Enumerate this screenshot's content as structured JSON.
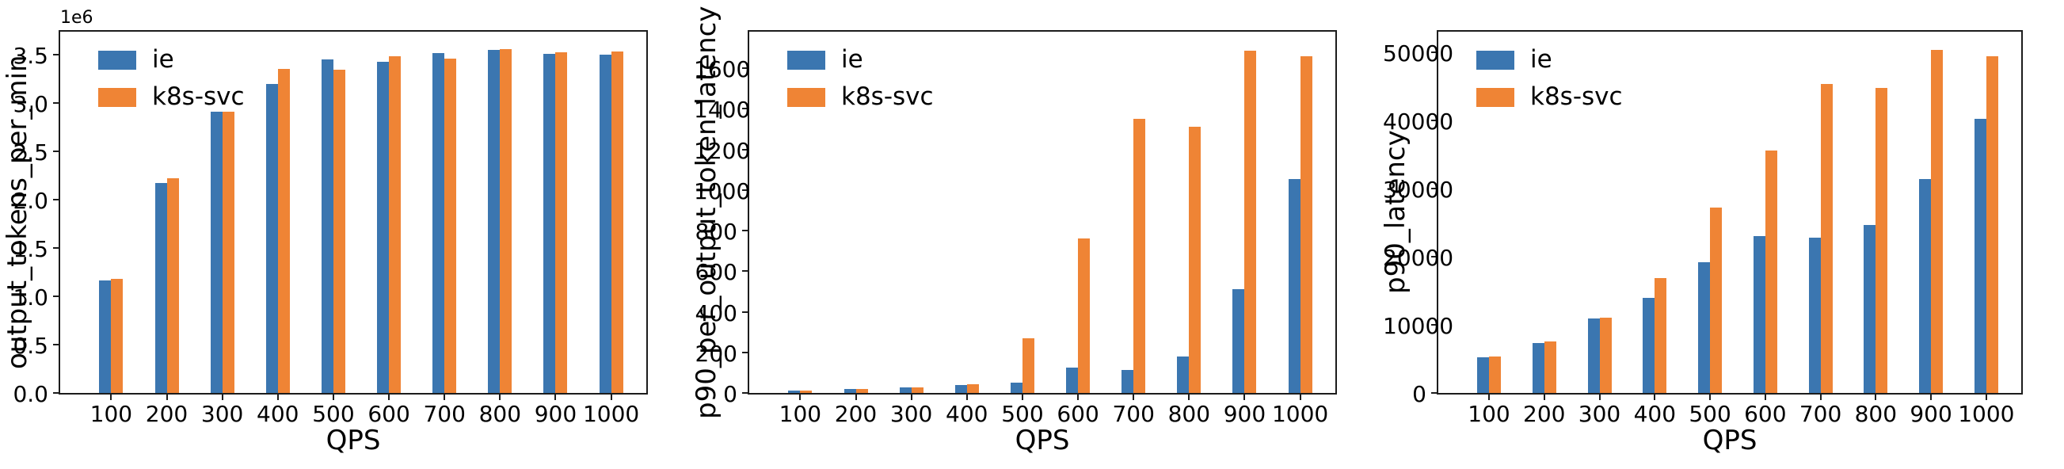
{
  "figure": {
    "background": "#ffffff",
    "axis_color": "#1c1c1c",
    "series_colors": {
      "ie": "#3b76b0",
      "k8s_svc": "#ef8435"
    }
  },
  "legend": {
    "position": "upper left",
    "items": [
      {
        "label": "ie",
        "color": "#3b76b0"
      },
      {
        "label": "k8s-svc",
        "color": "#ef8435"
      }
    ]
  },
  "chart_data": [
    {
      "type": "bar",
      "ylabel": "output_tokens_per_min",
      "xlabel": "QPS",
      "offset_label": "1e6",
      "categories": [
        "100",
        "200",
        "300",
        "400",
        "500",
        "600",
        "700",
        "800",
        "900",
        "1000"
      ],
      "series": [
        {
          "name": "ie",
          "color": "#3b76b0",
          "values": [
            1165000,
            2170000,
            2910000,
            3200000,
            3450000,
            3430000,
            3520000,
            3550000,
            3510000,
            3500000
          ]
        },
        {
          "name": "k8s-svc",
          "color": "#ef8435",
          "values": [
            1185000,
            2225000,
            2915000,
            3355000,
            3350000,
            3485000,
            3465000,
            3560000,
            3525000,
            3535000
          ]
        }
      ],
      "ylim": [
        0,
        3740000
      ],
      "yticks": {
        "values": [
          0,
          500000,
          1000000,
          1500000,
          2000000,
          2500000,
          3000000,
          3500000
        ],
        "labels": [
          "0.0",
          "0.5",
          "1.0",
          "1.5",
          "2.0",
          "2.5",
          "3.0",
          "3.5"
        ]
      },
      "grid": false,
      "legend_position": "upper left"
    },
    {
      "type": "bar",
      "ylabel": "p90_per_output_token_latency",
      "xlabel": "QPS",
      "offset_label": "",
      "categories": [
        "100",
        "200",
        "300",
        "400",
        "500",
        "600",
        "700",
        "800",
        "900",
        "1000"
      ],
      "series": [
        {
          "name": "ie",
          "color": "#3b76b0",
          "values": [
            12,
            20,
            28,
            38,
            52,
            125,
            115,
            180,
            510,
            1055
          ]
        },
        {
          "name": "k8s-svc",
          "color": "#ef8435",
          "values": [
            12,
            20,
            28,
            42,
            270,
            760,
            1350,
            1310,
            1685,
            1660
          ]
        }
      ],
      "ylim": [
        0,
        1780
      ],
      "yticks": {
        "values": [
          0,
          200,
          400,
          600,
          800,
          1000,
          1200,
          1400,
          1600
        ],
        "labels": [
          "0",
          "200",
          "400",
          "600",
          "800",
          "1000",
          "1200",
          "1400",
          "1600"
        ]
      },
      "grid": false,
      "legend_position": "upper left"
    },
    {
      "type": "bar",
      "ylabel": "p90_latency",
      "xlabel": "QPS",
      "offset_label": "",
      "categories": [
        "100",
        "200",
        "300",
        "400",
        "500",
        "600",
        "700",
        "800",
        "900",
        "1000"
      ],
      "series": [
        {
          "name": "ie",
          "color": "#3b76b0",
          "values": [
            5250,
            7300,
            10950,
            13950,
            19200,
            23000,
            22800,
            24700,
            31350,
            40200
          ]
        },
        {
          "name": "k8s-svc",
          "color": "#ef8435",
          "values": [
            5400,
            7550,
            11100,
            16800,
            27150,
            35600,
            45350,
            44750,
            50350,
            49350
          ]
        }
      ],
      "ylim": [
        0,
        53000
      ],
      "yticks": {
        "values": [
          0,
          10000,
          20000,
          30000,
          40000,
          50000
        ],
        "labels": [
          "0",
          "10000",
          "20000",
          "30000",
          "40000",
          "50000"
        ]
      },
      "grid": false,
      "legend_position": "upper left"
    }
  ]
}
